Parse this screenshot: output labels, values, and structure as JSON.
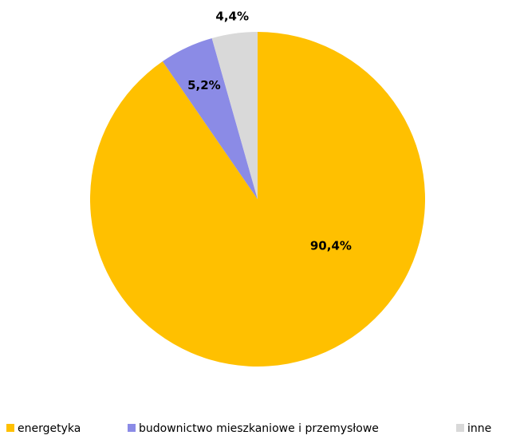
{
  "chart_data": {
    "type": "pie",
    "title": "",
    "slices": [
      {
        "label": "energetyka",
        "value": 90.4,
        "display": "90,4%",
        "color": "#FFC000"
      },
      {
        "label": "budownictwo mieszkaniowe i przemysłowe",
        "value": 5.2,
        "display": "5,2%",
        "color": "#8B8BE6"
      },
      {
        "label": "inne",
        "value": 4.4,
        "display": "4,4%",
        "color": "#D9D9D9"
      }
    ],
    "legend_position": "bottom",
    "start_angle": "12 o'clock",
    "direction": "clockwise"
  }
}
